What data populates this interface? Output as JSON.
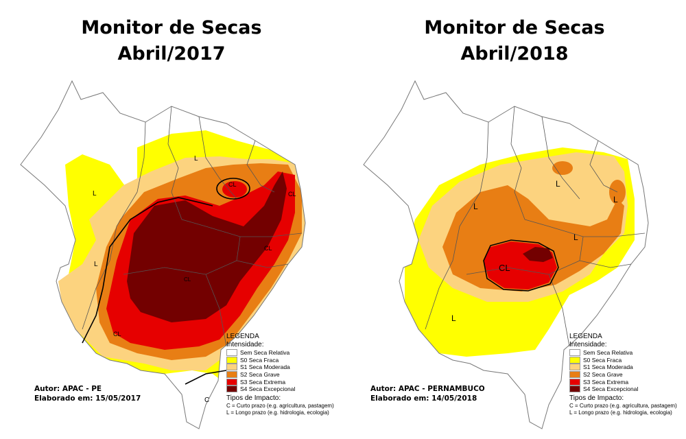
{
  "panels": [
    {
      "title_line1": "Monitor de Secas",
      "title_line2": "Abril/2017",
      "author": "Autor: APAC - PE",
      "date": "Elaborado em: 15/05/2017",
      "labels": [
        "L",
        "L",
        "L",
        "CL",
        "CL",
        "CL",
        "CL",
        "C"
      ]
    },
    {
      "title_line1": "Monitor de Secas",
      "title_line2": "Abril/2018",
      "author": "Autor: APAC - PERNAMBUCO",
      "date": "Elaborado em: 14/05/2018",
      "labels": [
        "L",
        "L",
        "L",
        "L",
        "CL",
        "L"
      ]
    }
  ],
  "legend": {
    "title": "LEGENDA",
    "intensity_title": "Intensidade:",
    "items": [
      {
        "label": "Sem Seca Relativa",
        "color": "#ffffff"
      },
      {
        "label": "S0 Seca Fraca",
        "color": "#ffff00"
      },
      {
        "label": "S1 Seca Moderada",
        "color": "#fcd37f"
      },
      {
        "label": "S2 Seca Grave",
        "color": "#e87e14"
      },
      {
        "label": "S3 Seca Extrema",
        "color": "#e60000"
      },
      {
        "label": "S4 Seca Excepcional",
        "color": "#730000"
      }
    ],
    "impact_title": "Tipos de Impacto:",
    "impact_c": "C = Curto prazo (e.g. agricultura, pastagem)",
    "impact_l": "L = Longo prazo (e.g. hidrologia, ecologia)"
  }
}
